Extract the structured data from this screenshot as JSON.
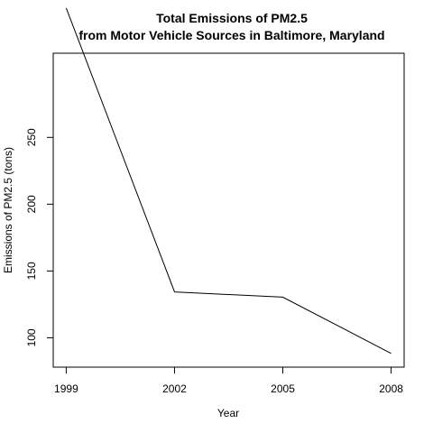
{
  "chart_data": {
    "type": "line",
    "title_line1": "Total Emissions of PM2.5",
    "title_line2": "from Motor Vehicle Sources in Baltimore, Maryland",
    "xlabel": "Year",
    "ylabel": "Emissions of PM2.5 (tons)",
    "x": [
      1999,
      2002,
      2005,
      2008
    ],
    "values": [
      346.82,
      134.31,
      130.43,
      88.28
    ],
    "xticks": [
      1999,
      2002,
      2005,
      2008
    ],
    "yticks": [
      100,
      150,
      200,
      250
    ],
    "xlim": [
      1998.64,
      2008.36
    ],
    "ylim": [
      78.0,
      313.0
    ],
    "grid": false,
    "line_color": "#000000"
  }
}
